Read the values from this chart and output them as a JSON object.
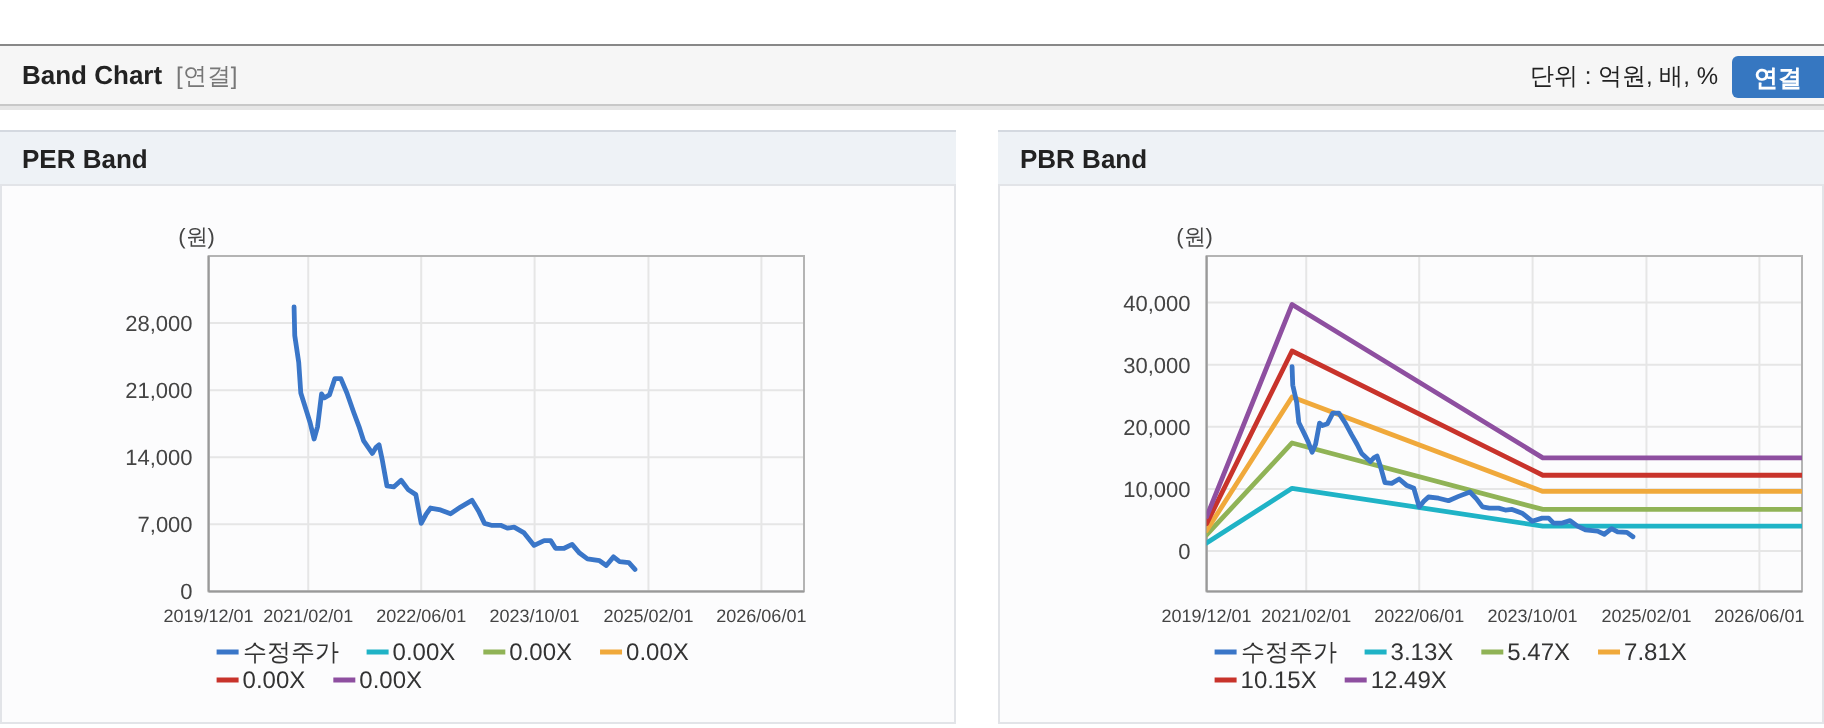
{
  "chart_data": [
    {
      "type": "other",
      "title": "Band Chart",
      "annotations": [
        "[연결]",
        "단위 : 억원, 배, %",
        "연결"
      ]
    },
    {
      "type": "line",
      "title": "PER Band",
      "ylabel": "(원)",
      "xlim": [
        "2019-12-01",
        "2026-12-01"
      ],
      "ylim": [
        0,
        35000
      ],
      "xticks": [
        {
          "value": "2019-12-01",
          "label": "2019/12/01"
        },
        {
          "value": "2021-02-01",
          "label": "2021/02/01"
        },
        {
          "value": "2022-06-01",
          "label": "2022/06/01"
        },
        {
          "value": "2023-10-01",
          "label": "2023/10/01"
        },
        {
          "value": "2025-02-01",
          "label": "2025/02/01"
        },
        {
          "value": "2026-06-01",
          "label": "2026/06/01"
        }
      ],
      "yticks": [
        0,
        {
          "value": 7000,
          "label": "7,000"
        },
        {
          "value": 14000,
          "label": "14,000"
        },
        {
          "value": 21000,
          "label": "21,000"
        },
        {
          "value": 28000,
          "label": "28,000"
        }
      ],
      "grid": true,
      "legend": "bottom",
      "line_style": "solid",
      "marker": "none",
      "series": [
        {
          "name": "수정주가",
          "color": "#3a76c8",
          "x": [
            "2020-12-02",
            "2020-12-05",
            "2020-12-22",
            "2020-12-31",
            "2021-01-26",
            "2021-02-09",
            "2021-02-26",
            "2021-03-13",
            "2021-03-30",
            "2021-04-11",
            "2021-05-03",
            "2021-05-26",
            "2021-06-21",
            "2021-07-17",
            "2021-08-15",
            "2021-09-07",
            "2021-09-27",
            "2021-11-03",
            "2021-11-18",
            "2021-12-02",
            "2021-12-16",
            "2022-01-05",
            "2022-02-03",
            "2022-03-07",
            "2022-04-07",
            "2022-05-09",
            "2022-06-01",
            "2022-06-21",
            "2022-07-11",
            "2022-08-23",
            "2022-10-05",
            "2022-11-17",
            "2023-01-05",
            "2023-02-02",
            "2023-02-28",
            "2023-03-29",
            "2023-05-08",
            "2023-06-06",
            "2023-07-05",
            "2023-08-17",
            "2023-09-29",
            "2023-11-11",
            "2023-12-09",
            "2023-12-30",
            "2024-02-05",
            "2024-03-10",
            "2024-04-11",
            "2024-05-15",
            "2024-07-06",
            "2024-08-04",
            "2024-09-04",
            "2024-09-30",
            "2024-11-09",
            "2024-12-05"
          ],
          "values": [
            29700,
            26700,
            23900,
            20700,
            18700,
            17600,
            15900,
            17200,
            20600,
            20200,
            20500,
            22200,
            22200,
            20700,
            18700,
            17200,
            15700,
            14400,
            15000,
            15300,
            13700,
            11000,
            10900,
            11600,
            10600,
            10100,
            7100,
            8000,
            8700,
            8500,
            8100,
            8800,
            9500,
            8400,
            7100,
            6900,
            6900,
            6600,
            6700,
            6100,
            4800,
            5300,
            5300,
            4500,
            4500,
            4900,
            4000,
            3400,
            3200,
            2700,
            3600,
            3100,
            3000,
            2300
          ]
        },
        {
          "name": "0.00X",
          "color": "#1fb3c6"
        },
        {
          "name": "0.00X",
          "color": "#90b356"
        },
        {
          "name": "0.00X",
          "color": "#f0a93b"
        },
        {
          "name": "0.00X",
          "color": "#c8332b"
        },
        {
          "name": "0.00X",
          "color": "#8e4fa0"
        }
      ]
    },
    {
      "type": "line",
      "title": "PBR Band",
      "ylabel": "(원)",
      "xlim": [
        "2019-12-01",
        "2026-12-01"
      ],
      "ylim": [
        -6500,
        47500
      ],
      "xticks": [
        {
          "value": "2019-12-01",
          "label": "2019/12/01"
        },
        {
          "value": "2021-02-01",
          "label": "2021/02/01"
        },
        {
          "value": "2022-06-01",
          "label": "2022/06/01"
        },
        {
          "value": "2023-10-01",
          "label": "2023/10/01"
        },
        {
          "value": "2025-02-01",
          "label": "2025/02/01"
        },
        {
          "value": "2026-06-01",
          "label": "2026/06/01"
        }
      ],
      "yticks": [
        0,
        {
          "value": 10000,
          "label": "10,000"
        },
        {
          "value": 20000,
          "label": "20,000"
        },
        {
          "value": 30000,
          "label": "30,000"
        },
        {
          "value": 40000,
          "label": "40,000"
        }
      ],
      "grid": true,
      "legend": "bottom",
      "line_style": "solid",
      "marker": "none",
      "series": [
        {
          "name": "수정주가",
          "color": "#3a76c8",
          "x": [
            "2020-12-02",
            "2020-12-05",
            "2020-12-22",
            "2020-12-31",
            "2021-01-26",
            "2021-02-09",
            "2021-02-26",
            "2021-03-13",
            "2021-03-30",
            "2021-04-11",
            "2021-05-03",
            "2021-05-26",
            "2021-06-21",
            "2021-07-17",
            "2021-08-15",
            "2021-09-07",
            "2021-09-27",
            "2021-11-03",
            "2021-11-18",
            "2021-12-02",
            "2021-12-16",
            "2022-01-05",
            "2022-02-03",
            "2022-03-07",
            "2022-04-07",
            "2022-05-09",
            "2022-06-01",
            "2022-06-21",
            "2022-07-11",
            "2022-08-23",
            "2022-10-05",
            "2022-11-17",
            "2023-01-05",
            "2023-02-02",
            "2023-02-28",
            "2023-03-29",
            "2023-05-08",
            "2023-06-06",
            "2023-07-05",
            "2023-08-17",
            "2023-09-29",
            "2023-11-11",
            "2023-12-09",
            "2023-12-30",
            "2024-02-05",
            "2024-03-10",
            "2024-04-11",
            "2024-05-15",
            "2024-07-06",
            "2024-08-04",
            "2024-09-04",
            "2024-09-30",
            "2024-11-09",
            "2024-12-05"
          ],
          "values": [
            29700,
            26700,
            23900,
            20700,
            18700,
            17600,
            15900,
            17200,
            20600,
            20200,
            20500,
            22200,
            22200,
            20700,
            18700,
            17200,
            15700,
            14400,
            15000,
            15300,
            13700,
            11000,
            10900,
            11600,
            10600,
            10100,
            7100,
            8000,
            8700,
            8500,
            8100,
            8800,
            9500,
            8400,
            7100,
            6900,
            6900,
            6600,
            6700,
            6100,
            4800,
            5300,
            5300,
            4500,
            4500,
            4900,
            4000,
            3400,
            3200,
            2700,
            3600,
            3100,
            3000,
            2300
          ]
        },
        {
          "name": "3.13X",
          "color": "#1fb3c6",
          "x": [
            "2019-12-01",
            "2020-12-02",
            "2023-11-14",
            "2026-12-01"
          ],
          "values": [
            1300,
            10100,
            4000,
            4000
          ]
        },
        {
          "name": "5.47X",
          "color": "#90b356",
          "x": [
            "2019-12-01",
            "2020-12-02",
            "2023-11-14",
            "2026-12-01"
          ],
          "values": [
            2600,
            17400,
            6700,
            6700
          ]
        },
        {
          "name": "7.81X",
          "color": "#f0a93b",
          "x": [
            "2019-12-01",
            "2020-12-02",
            "2023-11-14",
            "2026-12-01"
          ],
          "values": [
            3300,
            24800,
            9600,
            9600
          ]
        },
        {
          "name": "10.15X",
          "color": "#c8332b",
          "x": [
            "2019-12-01",
            "2020-12-02",
            "2023-11-14",
            "2026-12-01"
          ],
          "values": [
            4400,
            32200,
            12200,
            12200
          ]
        },
        {
          "name": "12.49X",
          "color": "#8e4fa0",
          "x": [
            "2019-12-01",
            "2020-12-02",
            "2023-11-14",
            "2026-12-01"
          ],
          "values": [
            5500,
            39700,
            15000,
            15000
          ]
        }
      ]
    }
  ]
}
